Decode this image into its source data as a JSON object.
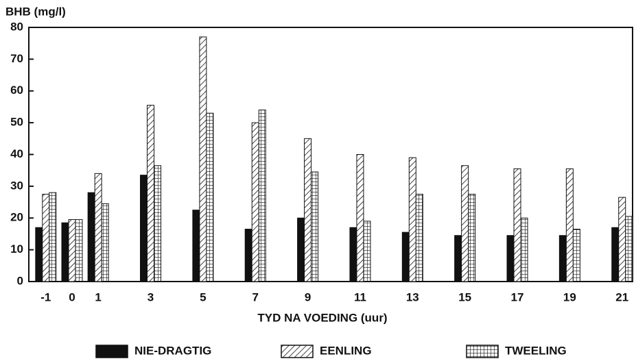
{
  "chart_data": {
    "type": "bar",
    "y_label": "BHB (mg/l)",
    "x_label": "TYD NA VOEDING (uur)",
    "x": [
      -1,
      0,
      1,
      3,
      5,
      7,
      9,
      11,
      13,
      15,
      17,
      19,
      21
    ],
    "xlim": [
      -1.65,
      21.4
    ],
    "xticks": [
      -1,
      0,
      1,
      3,
      5,
      7,
      9,
      11,
      13,
      15,
      17,
      19,
      21
    ],
    "ylim": [
      0,
      80
    ],
    "yticks": [
      0,
      10,
      20,
      30,
      40,
      50,
      60,
      70,
      80
    ],
    "series": [
      {
        "name": "NIE-DRAGTIG",
        "color": "#111111",
        "pattern": "solid",
        "values": [
          17,
          18.5,
          28,
          33.5,
          22.5,
          16.5,
          20,
          17,
          15.5,
          14.5,
          14.5,
          14.5,
          17
        ]
      },
      {
        "name": "EENLING",
        "color": "#111111",
        "pattern": "diagonal",
        "values": [
          27.5,
          19.5,
          34,
          55.5,
          77,
          50,
          45,
          40,
          39,
          36.5,
          35.5,
          35.5,
          26.5
        ]
      },
      {
        "name": "TWEELING",
        "color": "#111111",
        "pattern": "grid",
        "values": [
          28,
          19.5,
          24.5,
          36.5,
          53,
          54,
          34.5,
          19,
          27.5,
          27.5,
          20,
          16.5,
          20.5
        ]
      }
    ]
  }
}
